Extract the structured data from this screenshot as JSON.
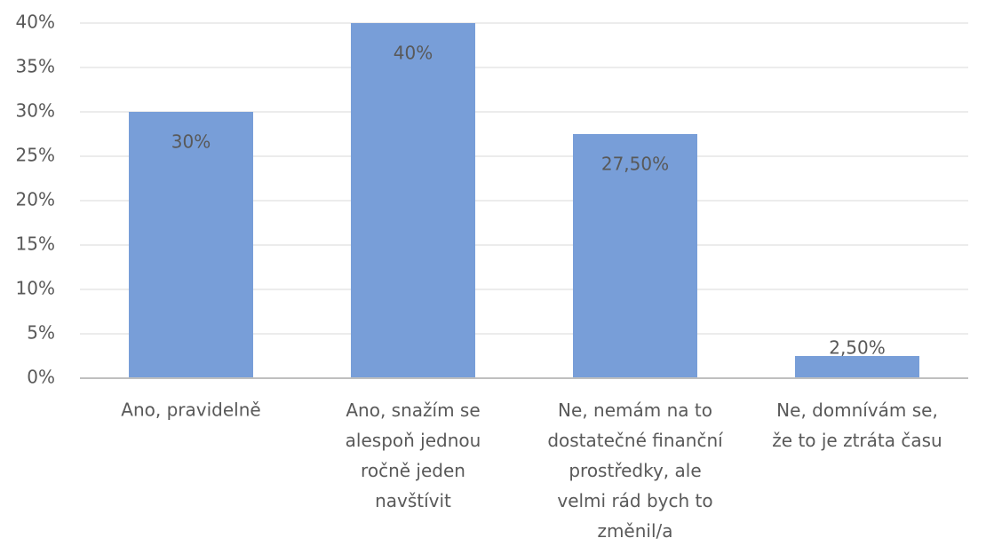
{
  "chart_data": {
    "type": "bar",
    "categories": [
      "Ano, pravidelně",
      "Ano, snažím se\nalespoň jednou\nročně jeden\nnavštívit",
      "Ne, nemám na to\ndostatečné finanční\nprostředky, ale\nvelmi rád bych to\nzměnil/a",
      "Ne, domnívám se,\nže to je ztráta času"
    ],
    "values": [
      30,
      40,
      27.5,
      2.5
    ],
    "value_labels": [
      "30%",
      "40%",
      "27,50%",
      "2,50%"
    ],
    "color": "#789ed8",
    "ylim": [
      0,
      40
    ],
    "yticks": [
      {
        "value": 0,
        "label": "0%"
      },
      {
        "value": 5,
        "label": "5%"
      },
      {
        "value": 10,
        "label": "10%"
      },
      {
        "value": 15,
        "label": "15%"
      },
      {
        "value": 20,
        "label": "20%"
      },
      {
        "value": 25,
        "label": "25%"
      },
      {
        "value": 30,
        "label": "30%"
      },
      {
        "value": 35,
        "label": "35%"
      },
      {
        "value": 40,
        "label": "40%"
      }
    ],
    "grid": true
  }
}
